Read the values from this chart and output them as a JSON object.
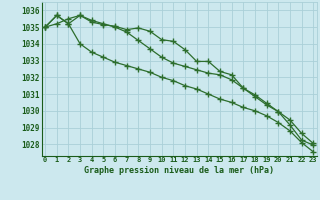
{
  "title": "Graphe pression niveau de la mer (hPa)",
  "background_color": "#cce8ee",
  "grid_color": "#aad0d8",
  "text_color": "#1a5c1a",
  "line_color": "#2d6e2d",
  "x_labels": [
    "0",
    "1",
    "2",
    "3",
    "4",
    "5",
    "6",
    "7",
    "8",
    "9",
    "10",
    "11",
    "12",
    "13",
    "14",
    "15",
    "16",
    "17",
    "18",
    "19",
    "20",
    "21",
    "22",
    "23"
  ],
  "ylim": [
    1027.3,
    1036.5
  ],
  "yticks": [
    1028,
    1029,
    1030,
    1031,
    1032,
    1033,
    1034,
    1035,
    1036
  ],
  "line1": [
    1035.0,
    1035.7,
    1035.2,
    1035.7,
    1035.3,
    1035.15,
    1035.05,
    1034.85,
    1034.95,
    1034.75,
    1034.25,
    1034.15,
    1033.65,
    1032.95,
    1032.95,
    1032.35,
    1032.15,
    1031.35,
    1030.95,
    1030.45,
    1029.95,
    1029.15,
    1028.25,
    1027.95
  ],
  "line2": [
    1035.0,
    1035.7,
    1035.2,
    1034.0,
    1033.5,
    1033.2,
    1032.9,
    1032.7,
    1032.5,
    1032.3,
    1032.0,
    1031.8,
    1031.5,
    1031.3,
    1031.0,
    1030.7,
    1030.5,
    1030.2,
    1030.0,
    1029.7,
    1029.3,
    1028.8,
    1028.1,
    1027.55
  ],
  "line3": [
    1035.0,
    1035.2,
    1035.5,
    1035.7,
    1035.4,
    1035.2,
    1035.0,
    1034.7,
    1034.2,
    1033.7,
    1033.2,
    1032.85,
    1032.65,
    1032.45,
    1032.25,
    1032.15,
    1031.85,
    1031.35,
    1030.85,
    1030.35,
    1029.95,
    1029.45,
    1028.65,
    1028.05
  ]
}
